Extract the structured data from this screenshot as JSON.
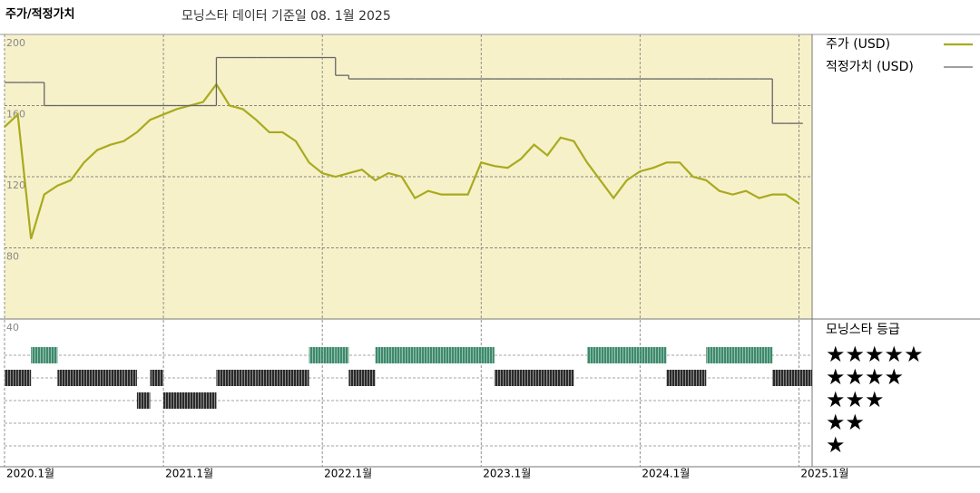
{
  "chart_data": {
    "type": "line",
    "title": "주가/적정가치",
    "subtitle": "모닝스타 데이터 기준일 08. 1월 2025",
    "x": [
      "2020-01",
      "2020-02",
      "2020-03",
      "2020-04",
      "2020-05",
      "2020-06",
      "2020-07",
      "2020-08",
      "2020-09",
      "2020-10",
      "2020-11",
      "2020-12",
      "2021-01",
      "2021-02",
      "2021-03",
      "2021-04",
      "2021-05",
      "2021-06",
      "2021-07",
      "2021-08",
      "2021-09",
      "2021-10",
      "2021-11",
      "2021-12",
      "2022-01",
      "2022-02",
      "2022-03",
      "2022-04",
      "2022-05",
      "2022-06",
      "2022-07",
      "2022-08",
      "2022-09",
      "2022-10",
      "2022-11",
      "2022-12",
      "2023-01",
      "2023-02",
      "2023-03",
      "2023-04",
      "2023-05",
      "2023-06",
      "2023-07",
      "2023-08",
      "2023-09",
      "2023-10",
      "2023-11",
      "2023-12",
      "2024-01",
      "2024-02",
      "2024-03",
      "2024-04",
      "2024-05",
      "2024-06",
      "2024-07",
      "2024-08",
      "2024-09",
      "2024-10",
      "2024-11",
      "2024-12",
      "2025-01"
    ],
    "xlim": [
      "2020-01",
      "2025-02"
    ],
    "xticks": [
      {
        "value": "2020-01",
        "label": "2020.1월"
      },
      {
        "value": "2021-01",
        "label": "2021.1월"
      },
      {
        "value": "2022-01",
        "label": "2022.1월"
      },
      {
        "value": "2023-01",
        "label": "2023.1월"
      },
      {
        "value": "2024-01",
        "label": "2024.1월"
      },
      {
        "value": "2025-01",
        "label": "2025.1월"
      }
    ],
    "ylim": [
      40,
      200
    ],
    "yticks": [
      40,
      80,
      120,
      160,
      200
    ],
    "grid": true,
    "series": [
      {
        "name": "주가 (USD)",
        "color": "#a9aa1f",
        "style": "line",
        "values": [
          148,
          155,
          85,
          110,
          115,
          118,
          128,
          135,
          138,
          140,
          145,
          152,
          155,
          158,
          160,
          162,
          172,
          160,
          158,
          152,
          145,
          145,
          140,
          128,
          122,
          120,
          122,
          124,
          118,
          122,
          120,
          108,
          112,
          110,
          110,
          110,
          128,
          126,
          125,
          130,
          138,
          132,
          142,
          140,
          128,
          118,
          108,
          118,
          123,
          125,
          128,
          128,
          120,
          118,
          112,
          110,
          112,
          108,
          110,
          110,
          105
        ]
      },
      {
        "name": "적정가치 (USD)",
        "color": "#666666",
        "style": "step",
        "values": [
          173,
          173,
          173,
          160,
          160,
          160,
          160,
          160,
          160,
          160,
          160,
          160,
          160,
          160,
          160,
          160,
          187,
          187,
          187,
          187,
          187,
          187,
          187,
          187,
          187,
          177,
          175,
          175,
          175,
          175,
          175,
          175,
          175,
          175,
          175,
          175,
          175,
          175,
          175,
          175,
          175,
          175,
          175,
          175,
          175,
          175,
          175,
          175,
          175,
          175,
          175,
          175,
          175,
          175,
          175,
          175,
          175,
          175,
          150,
          150,
          150
        ]
      }
    ],
    "ratings": {
      "name": "모닝스타 등급",
      "levels": [
        5,
        4,
        3,
        2,
        1
      ],
      "level_labels": [
        "★★★★★",
        "★★★★",
        "★★★",
        "★★",
        "★"
      ],
      "colors": [
        "#3d8a6c",
        "#2a2a2a",
        "#2a2a2a",
        "#2a2a2a",
        "#2a2a2a"
      ],
      "values": [
        4,
        4,
        5,
        5,
        4,
        4,
        4,
        4,
        4,
        4,
        3,
        4,
        3,
        3,
        3,
        3,
        4,
        4,
        4,
        4,
        4,
        4,
        4,
        5,
        5,
        5,
        4,
        4,
        5,
        5,
        5,
        5,
        5,
        5,
        5,
        5,
        5,
        4,
        4,
        4,
        4,
        4,
        4,
        null,
        5,
        5,
        5,
        5,
        5,
        5,
        4,
        4,
        4,
        5,
        5,
        5,
        5,
        5,
        4,
        4,
        4
      ]
    }
  }
}
